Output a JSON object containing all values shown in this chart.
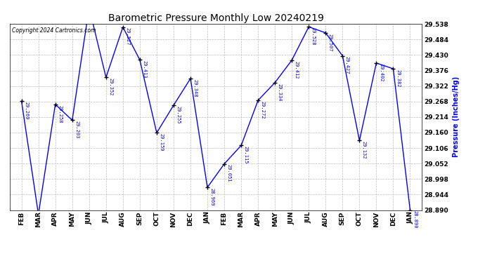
{
  "title": "Barometric Pressure Monthly Low 20240219",
  "ylabel": "Pressure (Inches/Hg)",
  "copyright": "Copyright 2024 Cartronics.com",
  "months": [
    "FEB",
    "MAR",
    "APR",
    "MAY",
    "JUN",
    "JUL",
    "AUG",
    "SEP",
    "OCT",
    "NOV",
    "DEC",
    "JAN",
    "FEB",
    "MAR",
    "APR",
    "MAY",
    "JUN",
    "JUL",
    "AUG",
    "SEP",
    "OCT",
    "NOV",
    "DEC",
    "JAN"
  ],
  "values": [
    29.269,
    28.875,
    29.258,
    29.203,
    29.595,
    29.352,
    29.527,
    29.413,
    29.159,
    29.255,
    29.348,
    28.969,
    29.051,
    29.115,
    29.272,
    29.334,
    29.412,
    29.528,
    29.507,
    29.427,
    29.132,
    29.402,
    29.382,
    28.89
  ],
  "ylim_min": 28.89,
  "ylim_max": 29.538,
  "line_color": "blue",
  "marker_color": "black",
  "grid_color": "#bbbbbb",
  "bg_color": "white",
  "title_color": "black",
  "label_color": "blue",
  "yticks": [
    28.89,
    28.944,
    28.998,
    29.052,
    29.106,
    29.16,
    29.214,
    29.268,
    29.322,
    29.376,
    29.43,
    29.484,
    29.538
  ]
}
